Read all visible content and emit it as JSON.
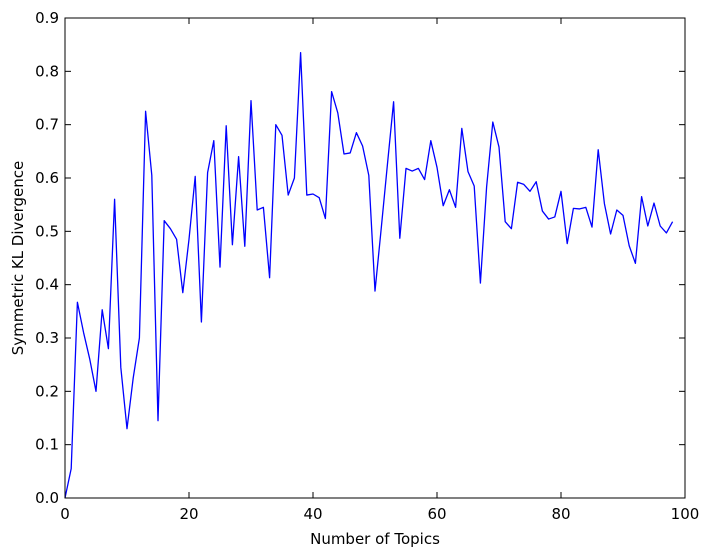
{
  "chart_data": {
    "type": "line",
    "title": "",
    "xlabel": "Number of Topics",
    "ylabel": "Symmetric KL Divergence",
    "xlim": [
      0,
      100
    ],
    "ylim": [
      0,
      0.9
    ],
    "xticks": [
      "0",
      "20",
      "40",
      "60",
      "80",
      "100"
    ],
    "yticks": [
      "0.0",
      "0.1",
      "0.2",
      "0.3",
      "0.4",
      "0.5",
      "0.6",
      "0.7",
      "0.8",
      "0.9"
    ],
    "grid": false,
    "line_color": "#0000ff",
    "series": [
      {
        "x": [
          0,
          1,
          2,
          3,
          4,
          5,
          6,
          7,
          8,
          9,
          10,
          11,
          12,
          13,
          14,
          15,
          16,
          17,
          18,
          19,
          20,
          21,
          22,
          23,
          24,
          25,
          26,
          27,
          28,
          29,
          30,
          31,
          32,
          33,
          34,
          35,
          36,
          37,
          38,
          39,
          40,
          41,
          42,
          43,
          44,
          45,
          46,
          47,
          48,
          49,
          50,
          51,
          52,
          53,
          54,
          55,
          56,
          57,
          58,
          59,
          60,
          61,
          62,
          63,
          64,
          65,
          66,
          67,
          68,
          69,
          70,
          71,
          72,
          73,
          74,
          75,
          76,
          77,
          78,
          79,
          80,
          81,
          82,
          83,
          84,
          85,
          86,
          87,
          88,
          89,
          90,
          91,
          92,
          93,
          94,
          95,
          96,
          97,
          98
        ],
        "values": [
          0.0,
          0.055,
          0.367,
          0.31,
          0.26,
          0.2,
          0.353,
          0.28,
          0.56,
          0.245,
          0.13,
          0.225,
          0.3,
          0.725,
          0.605,
          0.145,
          0.52,
          0.505,
          0.485,
          0.385,
          0.485,
          0.603,
          0.33,
          0.61,
          0.67,
          0.433,
          0.698,
          0.475,
          0.64,
          0.472,
          0.745,
          0.54,
          0.545,
          0.413,
          0.7,
          0.68,
          0.568,
          0.6,
          0.835,
          0.568,
          0.57,
          0.563,
          0.524,
          0.762,
          0.722,
          0.645,
          0.647,
          0.685,
          0.66,
          0.605,
          0.388,
          0.505,
          0.625,
          0.743,
          0.487,
          0.618,
          0.613,
          0.618,
          0.597,
          0.67,
          0.62,
          0.548,
          0.578,
          0.545,
          0.693,
          0.612,
          0.585,
          0.403,
          0.583,
          0.705,
          0.658,
          0.518,
          0.505,
          0.592,
          0.588,
          0.575,
          0.593,
          0.538,
          0.523,
          0.527,
          0.575,
          0.477,
          0.543,
          0.542,
          0.545,
          0.508,
          0.653,
          0.552,
          0.495,
          0.54,
          0.53,
          0.473,
          0.44,
          0.565,
          0.51,
          0.553,
          0.51,
          0.497,
          0.518
        ]
      }
    ]
  }
}
